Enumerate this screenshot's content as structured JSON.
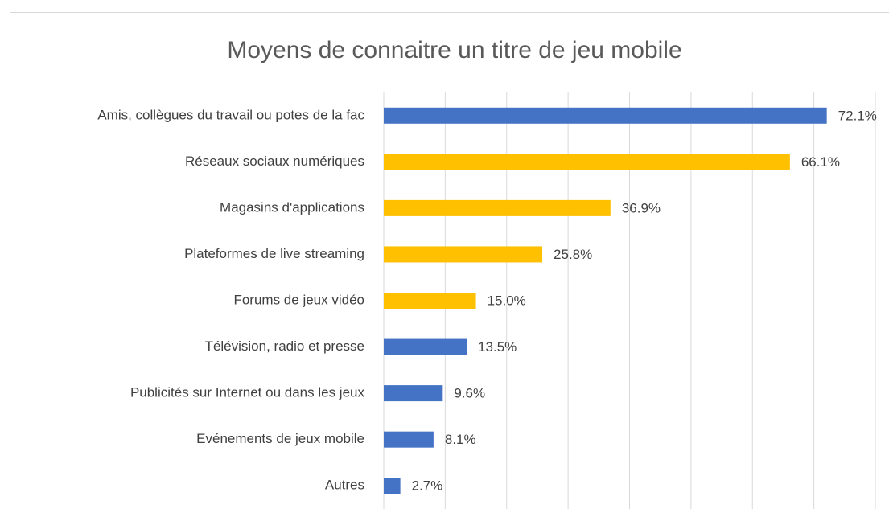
{
  "chart_data": {
    "type": "barh",
    "title": "Moyens de connaitre un titre de jeu mobile",
    "categories": [
      "Amis, collègues du travail ou potes de la fac",
      "Réseaux sociaux numériques",
      "Magasins d'applications",
      "Plateformes de live streaming",
      "Forums de jeux vidéo",
      "Télévision, radio et presse",
      "Publicités sur Internet ou dans les jeux",
      "Evénements de jeux mobile",
      "Autres"
    ],
    "values": [
      72.1,
      66.1,
      36.9,
      25.8,
      15.0,
      13.5,
      9.6,
      8.1,
      2.7
    ],
    "value_labels": [
      "72.1%",
      "66.1%",
      "36.9%",
      "25.8%",
      "15.0%",
      "13.5%",
      "9.6%",
      "8.1%",
      "2.7%"
    ],
    "colors": [
      "#4472c4",
      "#ffc000",
      "#ffc000",
      "#ffc000",
      "#ffc000",
      "#4472c4",
      "#4472c4",
      "#4472c4",
      "#4472c4"
    ],
    "xlim": [
      0,
      80
    ],
    "xticks": [
      0,
      10,
      20,
      30,
      40,
      50,
      60,
      70,
      80
    ],
    "show_tick_labels": false,
    "grid": true
  }
}
